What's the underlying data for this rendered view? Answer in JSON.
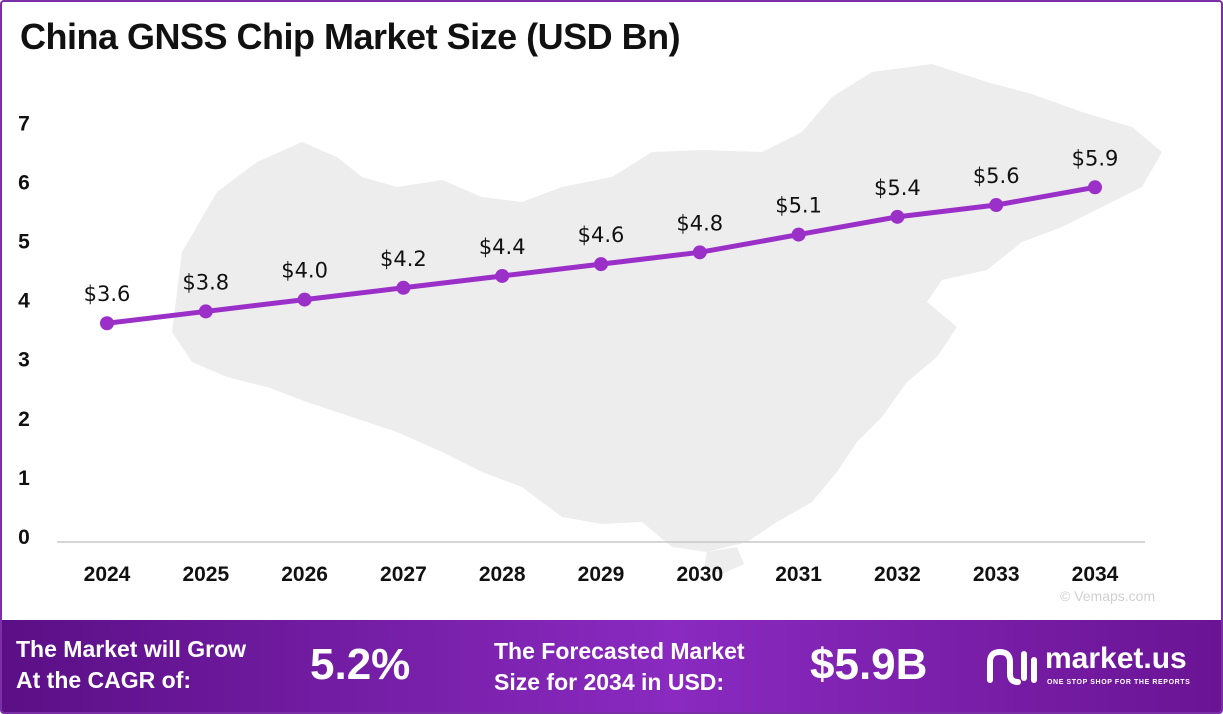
{
  "title": "China GNSS Chip Market Size (USD Bn)",
  "chart_data": {
    "type": "line",
    "title": "China GNSS Chip Market Size (USD Bn)",
    "categories": [
      "2024",
      "2025",
      "2026",
      "2027",
      "2028",
      "2029",
      "2030",
      "2031",
      "2032",
      "2033",
      "2034"
    ],
    "values": [
      3.6,
      3.8,
      4.0,
      4.2,
      4.4,
      4.6,
      4.8,
      5.1,
      5.4,
      5.6,
      5.9
    ],
    "data_labels": [
      "$3.6",
      "$3.8",
      "$4.0",
      "$4.2",
      "$4.4",
      "$4.6",
      "$4.8",
      "$5.1",
      "$5.4",
      "$5.6",
      "$5.9"
    ],
    "y_ticks": [
      "0",
      "1",
      "2",
      "3",
      "4",
      "5",
      "6",
      "7"
    ],
    "ylim": [
      0,
      7
    ],
    "grid": false,
    "line_color": "#9b30c9"
  },
  "watermark": "© Vemaps.com",
  "footer": {
    "cagr_label_line1": "The Market will Grow",
    "cagr_label_line2": "At the CAGR of:",
    "cagr_value": "5.2%",
    "forecast_label_line1": "The Forecasted Market",
    "forecast_label_line2": "Size for 2034 in USD:",
    "forecast_value": "$5.9B",
    "brand": "market.us",
    "tagline": "ONE STOP SHOP FOR THE REPORTS"
  },
  "colors": {
    "accent": "#9b30c9",
    "footer_start": "#5b0f86",
    "footer_end": "#8a2ac0",
    "map": "#ececec"
  }
}
